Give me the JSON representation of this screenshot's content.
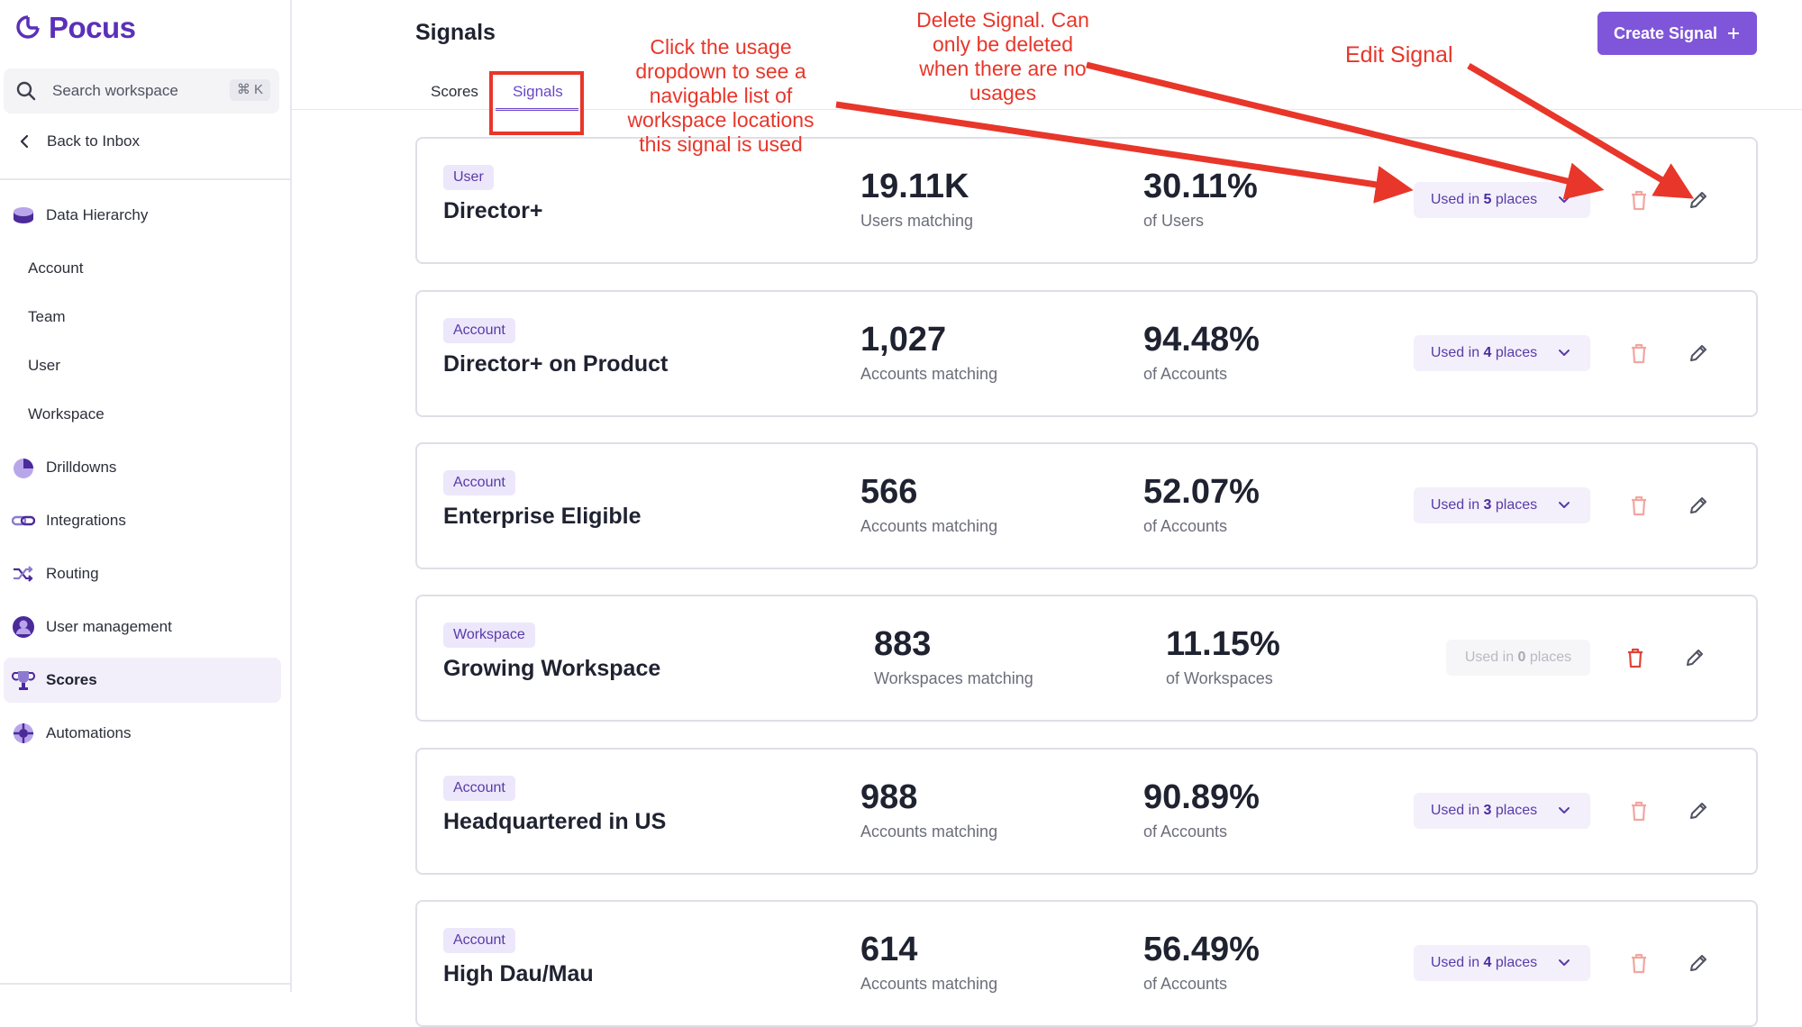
{
  "sidebar": {
    "logo_text": "Pocus",
    "search_placeholder": "Search workspace",
    "search_shortcut": "⌘ K",
    "back_label": "Back to Inbox",
    "items": [
      {
        "label": "Data Hierarchy",
        "icon": "database-icon"
      },
      {
        "label": "Account"
      },
      {
        "label": "Team"
      },
      {
        "label": "User"
      },
      {
        "label": "Workspace"
      },
      {
        "label": "Drilldowns",
        "icon": "pie-chart-icon"
      },
      {
        "label": "Integrations",
        "icon": "link-icon"
      },
      {
        "label": "Routing",
        "icon": "shuffle-icon"
      },
      {
        "label": "User management",
        "icon": "user-icon"
      },
      {
        "label": "Scores",
        "icon": "trophy-icon",
        "active": true
      },
      {
        "label": "Automations",
        "icon": "automation-icon"
      }
    ]
  },
  "header": {
    "title": "Signals",
    "tabs": [
      {
        "label": "Scores"
      },
      {
        "label": "Signals",
        "active": true
      }
    ],
    "create_button": "Create Signal"
  },
  "signals": [
    {
      "type": "User",
      "name": "Director+",
      "count": "19.11K",
      "count_label": "Users matching",
      "pct": "30.11%",
      "pct_label": "of Users",
      "usage_prefix": "Used in ",
      "usage_count": "5",
      "usage_suffix": " places"
    },
    {
      "type": "Account",
      "name": "Director+ on Product",
      "count": "1,027",
      "count_label": "Accounts matching",
      "pct": "94.48%",
      "pct_label": "of Accounts",
      "usage_prefix": "Used in ",
      "usage_count": "4",
      "usage_suffix": " places"
    },
    {
      "type": "Account",
      "name": "Enterprise Eligible",
      "count": "566",
      "count_label": "Accounts matching",
      "pct": "52.07%",
      "pct_label": "of Accounts",
      "usage_prefix": "Used in ",
      "usage_count": "3",
      "usage_suffix": " places"
    },
    {
      "type": "Workspace",
      "name": "Growing Workspace",
      "count": "883",
      "count_label": "Workspaces matching",
      "pct": "11.15%",
      "pct_label": "of Workspaces",
      "usage_prefix": "Used in ",
      "usage_count": "0",
      "usage_suffix": " places"
    },
    {
      "type": "Account",
      "name": "Headquartered in US",
      "count": "988",
      "count_label": "Accounts matching",
      "pct": "90.89%",
      "pct_label": "of Accounts",
      "usage_prefix": "Used in ",
      "usage_count": "3",
      "usage_suffix": " places"
    },
    {
      "type": "Account",
      "name": "High Dau/Mau",
      "count": "614",
      "count_label": "Accounts matching",
      "pct": "56.49%",
      "pct_label": "of Accounts",
      "usage_prefix": "Used in ",
      "usage_count": "4",
      "usage_suffix": " places"
    }
  ],
  "annotations": {
    "usage_note_lines": [
      "Click the usage",
      "dropdown to see a",
      "navigable list of",
      "workspace locations",
      "this signal is used"
    ],
    "delete_note_lines": [
      "Delete Signal. Can",
      "only be deleted",
      "when there are no",
      "usages"
    ],
    "edit_note": "Edit Signal"
  },
  "colors": {
    "accent": "#7f56d9",
    "annotation": "#e8362a",
    "delete": "#e0433a"
  }
}
